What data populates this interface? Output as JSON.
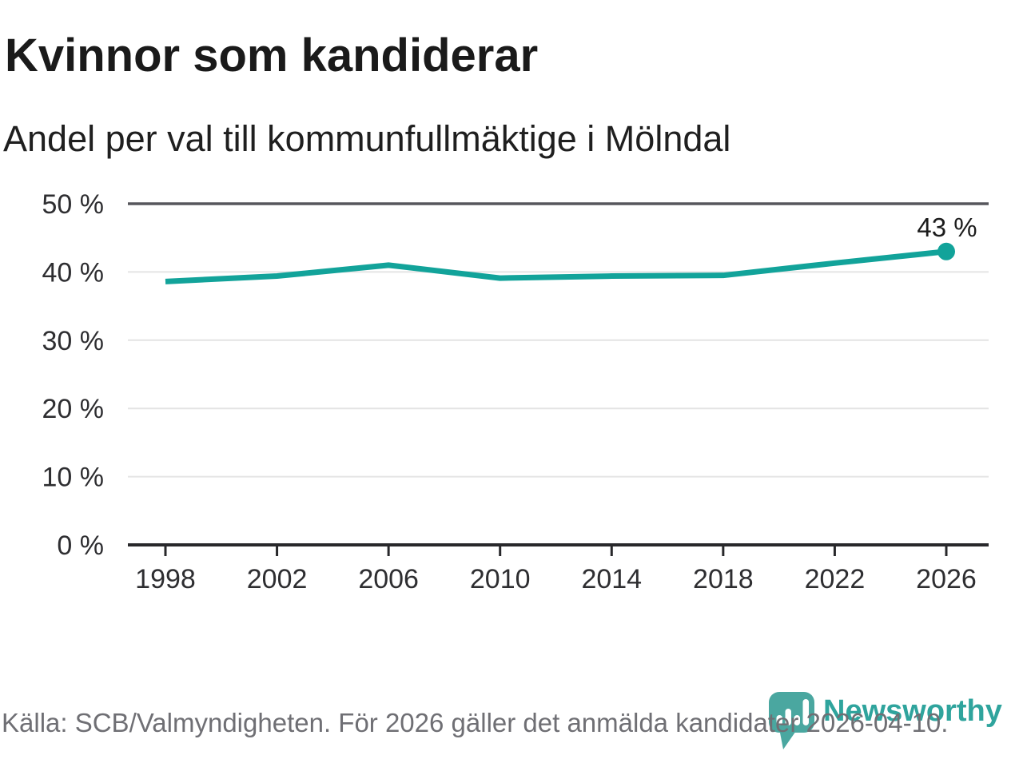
{
  "header": {
    "title": "Kvinnor som kandiderar",
    "subtitle": "Andel per val till kommunfullmäktige i Mölndal"
  },
  "footer": {
    "source_note": "Källa: SCB/Valmyndigheten. För 2026 gäller det anmälda kandidater 2026-04-10."
  },
  "branding": {
    "name": "Newsworthy",
    "icon": "newsworthy-speech-bubble-bar-chart-icon",
    "icon_color": "#4aa7a0",
    "text_color": "#2fa49d"
  },
  "chart_data": {
    "type": "line",
    "title": "Kvinnor som kandiderar",
    "subtitle": "Andel per val till kommunfullmäktige i Mölndal",
    "x": [
      1998,
      2002,
      2006,
      2010,
      2014,
      2018,
      2022,
      2026
    ],
    "values": [
      38.6,
      39.4,
      41.0,
      39.1,
      39.4,
      39.5,
      41.3,
      43.0
    ],
    "unit": "%",
    "ylim": [
      0,
      50
    ],
    "yticks": [
      0,
      10,
      20,
      30,
      40,
      50
    ],
    "ytick_suffix": " %",
    "xticks": [
      1998,
      2002,
      2006,
      2010,
      2014,
      2018,
      2022,
      2026
    ],
    "grid": true,
    "legend": "none",
    "line_color": "#12a39a",
    "end_label": "43 %"
  }
}
